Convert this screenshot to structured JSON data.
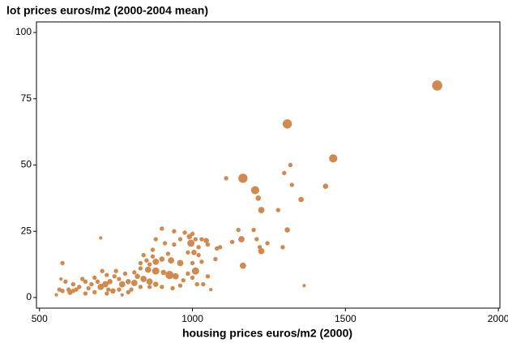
{
  "chart_data": {
    "type": "scatter",
    "title": "lot prices euros/m2 (2000-2004 mean)",
    "xlabel": "housing prices euros/m2 (2000)",
    "color": "#d08a4e",
    "xlim": [
      490,
      2005
    ],
    "xticks": [
      500,
      1000,
      1500,
      2000
    ],
    "ylim": [
      -4,
      104
    ],
    "yticks": [
      0,
      25,
      50,
      75,
      100
    ],
    "x": [
      1800,
      1310,
      1460,
      1320,
      1300,
      1165,
      1110,
      1325,
      1435,
      1205,
      1215,
      1355,
      1225,
      1280,
      1150,
      1200,
      1310,
      1160,
      1130,
      1245,
      1220,
      1295,
      1225,
      1210,
      1165,
      1365,
      1000,
      975,
      990,
      1010,
      1030,
      1050,
      1045,
      960,
      940,
      910,
      995,
      1020,
      985,
      1005,
      1020,
      1080,
      1090,
      1075,
      1030,
      1000,
      960,
      930,
      900,
      870,
      880,
      860,
      850,
      870,
      830,
      855,
      880,
      905,
      925,
      945,
      970,
      985,
      1010,
      1000,
      1015,
      1060,
      1050,
      1035,
      960,
      935,
      900,
      880,
      860,
      840,
      820,
      810,
      790,
      770,
      760,
      745,
      730,
      715,
      700,
      690,
      705,
      700,
      680,
      670,
      660,
      650,
      640,
      630,
      620,
      610,
      600,
      595,
      585,
      575,
      570,
      565,
      575,
      555,
      610,
      650,
      680,
      720,
      740,
      760,
      790,
      800,
      830,
      720,
      750,
      780,
      810,
      830,
      840,
      900,
      920,
      880,
      940,
      725,
      770,
      860
    ],
    "values": [
      80,
      65.5,
      52.5,
      50,
      47,
      45,
      45,
      42.5,
      42,
      40.5,
      37.5,
      37,
      33,
      33,
      25.5,
      25.5,
      25.5,
      22,
      21,
      20.5,
      19,
      19,
      17.5,
      22,
      12,
      4.5,
      24,
      24.5,
      23,
      22,
      22,
      20,
      21.5,
      22,
      20,
      20.5,
      20.5,
      19,
      17,
      17,
      16,
      18.5,
      19,
      14.5,
      13.5,
      13,
      13,
      14,
      14.5,
      15.5,
      13.5,
      12.5,
      14,
      18,
      11,
      10.5,
      10,
      9.5,
      8.5,
      8,
      6.5,
      9,
      10,
      7.5,
      5,
      3,
      8,
      5,
      4.5,
      3.5,
      4,
      5,
      6,
      7,
      8,
      5.5,
      6,
      5,
      7,
      8,
      6,
      5,
      4,
      6,
      10,
      22.5,
      7.5,
      5,
      3.5,
      6,
      7,
      4,
      3,
      5,
      2,
      3,
      6,
      13,
      7,
      3,
      2.5,
      1,
      2.5,
      1.5,
      2,
      1.5,
      2.5,
      3,
      2,
      3,
      4,
      8.5,
      10,
      9,
      9.5,
      13,
      16,
      26,
      16.5,
      22,
      25,
      3,
      1,
      4
    ],
    "sizes": [
      5,
      4.5,
      4,
      2,
      2,
      4.5,
      2,
      2,
      2.5,
      4,
      2.5,
      2.5,
      3,
      2,
      2,
      2,
      2.5,
      3,
      2,
      2,
      2,
      2,
      3,
      2,
      3,
      1.5,
      2,
      2,
      2.5,
      2,
      2,
      2,
      2.5,
      2,
      2,
      2,
      3.5,
      2,
      2,
      2.5,
      2,
      2,
      2,
      2,
      2,
      2,
      3,
      3,
      2.5,
      2,
      3,
      2,
      2,
      2,
      2,
      3,
      3.5,
      2.5,
      4,
      3,
      2,
      2,
      3.5,
      2,
      2,
      1.5,
      2,
      2,
      2,
      2,
      2,
      2.5,
      3,
      3,
      2.5,
      3,
      2.5,
      3,
      2,
      2,
      2.5,
      3,
      3,
      2,
      2,
      1.5,
      2,
      2,
      2,
      2,
      2,
      2,
      2,
      2,
      2.5,
      2,
      2,
      2,
      1.5,
      2,
      2,
      1.5,
      2,
      2,
      2,
      2,
      2.5,
      2,
      2,
      2,
      2,
      2,
      2,
      2,
      2,
      2,
      2,
      2,
      2,
      2,
      2,
      2,
      1.5,
      2
    ]
  }
}
